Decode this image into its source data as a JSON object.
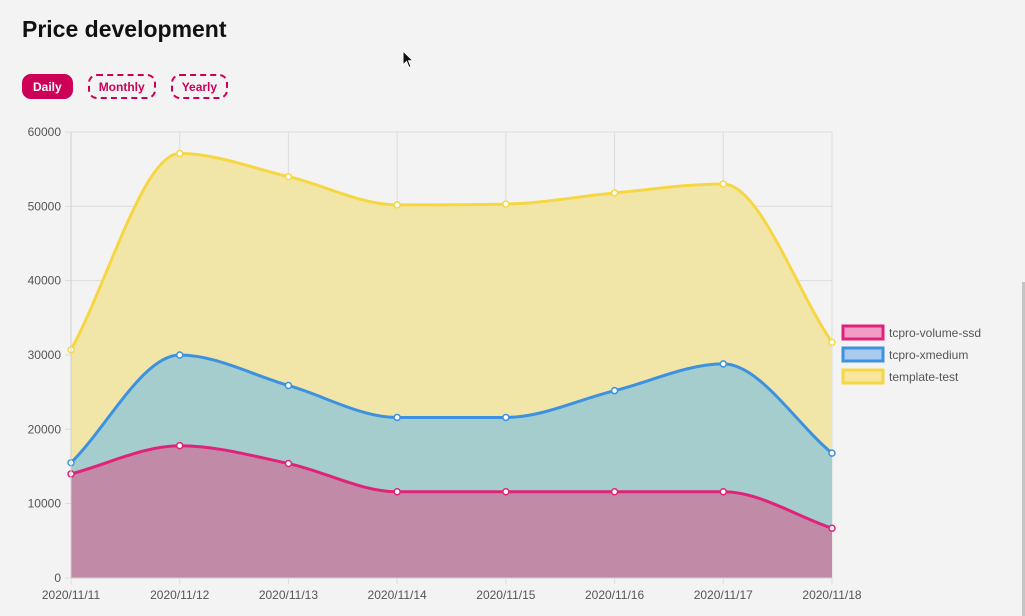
{
  "page": {
    "title": "Price development"
  },
  "periods": [
    {
      "label": "Daily",
      "active": true
    },
    {
      "label": "Monthly",
      "active": false
    },
    {
      "label": "Yearly",
      "active": false
    }
  ],
  "colors": {
    "accent": "#cc0057",
    "grid": "#dddddd"
  },
  "chart_data": {
    "type": "area",
    "stacked": true,
    "categories": [
      "2020/11/11",
      "2020/11/12",
      "2020/11/13",
      "2020/11/14",
      "2020/11/15",
      "2020/11/16",
      "2020/11/17",
      "2020/11/18"
    ],
    "ylim": [
      0,
      60000
    ],
    "yticks": [
      0,
      10000,
      20000,
      30000,
      40000,
      50000,
      60000
    ],
    "grid": true,
    "legend_position": "right",
    "series": [
      {
        "name": "tcpro-volume-ssd",
        "values": [
          14000,
          17800,
          15400,
          11600,
          11600,
          11600,
          11600,
          6700
        ],
        "line": "#e0237a",
        "fill": "#c18aa6",
        "swatch": "#f29bc4"
      },
      {
        "name": "tcpro-xmedium",
        "values": [
          1500,
          12200,
          10500,
          10000,
          10000,
          13600,
          17200,
          10100
        ],
        "line": "#3d92df",
        "fill": "#a5cdcd",
        "swatch": "#a9cbf0"
      },
      {
        "name": "template-test",
        "values": [
          15200,
          27100,
          28100,
          28600,
          28700,
          26600,
          24200,
          14900
        ],
        "line": "#f6d743",
        "fill": "#f1e6a8",
        "swatch": "#f6e79c"
      }
    ]
  }
}
